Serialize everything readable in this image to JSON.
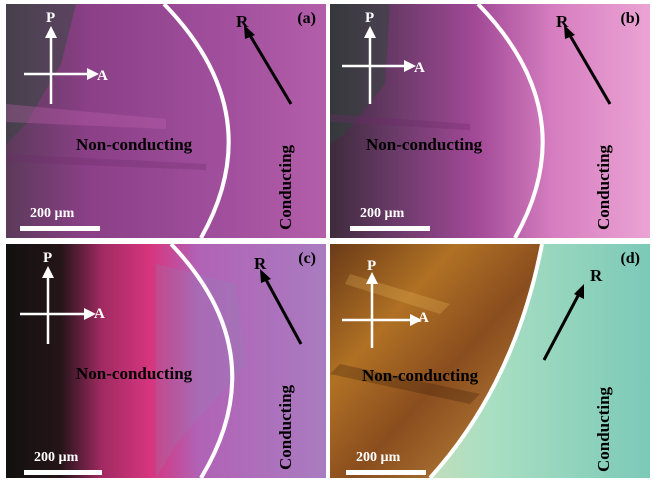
{
  "panels": [
    {
      "id": "a",
      "label": "(a)",
      "non_conducting": "Non-conducting",
      "conducting": "Conducting",
      "polarizer": "P",
      "analyzer": "A",
      "direction": "R",
      "scale": "200 µm",
      "colors": {
        "left": "#7b3f78",
        "mid": "#9a4a9a",
        "right": "#b25aa8",
        "accent": "#1e5a3c"
      }
    },
    {
      "id": "b",
      "label": "(b)",
      "non_conducting": "Non-conducting",
      "conducting": "Conducting",
      "polarizer": "P",
      "analyzer": "A",
      "direction": "R",
      "scale": "200 µm",
      "colors": {
        "left": "#4a2b45",
        "mid": "#a9489c",
        "right": "#e38fcb",
        "accent": "#2b6a4c"
      }
    },
    {
      "id": "c",
      "label": "(c)",
      "non_conducting": "Non-conducting",
      "conducting": "Conducting",
      "polarizer": "P",
      "analyzer": "A",
      "direction": "R",
      "scale": "200 µm",
      "colors": {
        "left": "#1a1214",
        "mid": "#d0307e",
        "right": "#b167b9",
        "accent": "#2b6a4c"
      }
    },
    {
      "id": "d",
      "label": "(d)",
      "non_conducting": "Non-conducting",
      "conducting": "Conducting",
      "polarizer": "P",
      "analyzer": "A",
      "direction": "R",
      "scale": "200 µm",
      "colors": {
        "left": "#5a3214",
        "mid": "#b0731e",
        "right": "#8fd6b4",
        "accent": "#c9a35a"
      }
    }
  ]
}
